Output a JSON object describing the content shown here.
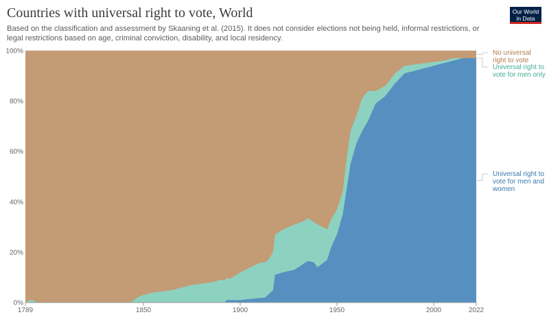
{
  "title": "Countries with universal right to vote, World",
  "subtitle": "Based on the classification and assessment by Skaaning et al. (2015). It does not consider elections not being held, informal restrictions, or legal restrictions based on age, criminal conviction, disability, and local residency.",
  "logo": {
    "line1": "Our World",
    "line2": "in Data"
  },
  "colors": {
    "none": "#c39b74",
    "men": "#8dd1c0",
    "both": "#5690c1",
    "grid": "#dddddd",
    "text": "#666666"
  },
  "chart_data": {
    "type": "area",
    "stacked": true,
    "percent": true,
    "ylim": [
      0,
      100
    ],
    "xlim": [
      1789,
      2022
    ],
    "x_ticks": [
      "1789",
      "1850",
      "1900",
      "1950",
      "2000",
      "2022"
    ],
    "y_ticks": [
      "0%",
      "20%",
      "40%",
      "60%",
      "80%",
      "100%"
    ],
    "series": [
      {
        "name": "Universal right to vote for men and women",
        "key": "both",
        "x": [
          1789,
          1892,
          1893,
          1900,
          1906,
          1913,
          1915,
          1917,
          1918,
          1922,
          1928,
          1932,
          1935,
          1938,
          1940,
          1945,
          1947,
          1950,
          1953,
          1955,
          1957,
          1960,
          1963,
          1966,
          1970,
          1975,
          1980,
          1985,
          1990,
          1995,
          2000,
          2005,
          2010,
          2015,
          2022
        ],
        "values": [
          0,
          0,
          1,
          1,
          1.5,
          2,
          3.5,
          5,
          11,
          12,
          13,
          15,
          16.5,
          16,
          14,
          17,
          22,
          27,
          35,
          45,
          55,
          63,
          68,
          72,
          79,
          82,
          87,
          91,
          92,
          93,
          94,
          95,
          96,
          97,
          97
        ]
      },
      {
        "name": "Universal right to vote for men only",
        "key": "men",
        "x": [
          1789,
          1791,
          1793,
          1795,
          1843,
          1846,
          1848,
          1850,
          1855,
          1860,
          1865,
          1870,
          1875,
          1880,
          1885,
          1890,
          1895,
          1900,
          1905,
          1910,
          1913,
          1915,
          1917,
          1918,
          1922,
          1928,
          1932,
          1935,
          1938,
          1940,
          1945,
          1947,
          1950,
          1953,
          1955,
          1957,
          1960,
          1963,
          1966,
          1970,
          1975,
          1980,
          1985,
          1990,
          1995,
          2000,
          2005,
          2010,
          2015,
          2022
        ],
        "values": [
          0,
          1,
          1,
          0,
          0,
          1.5,
          2.5,
          3,
          4,
          4.5,
          5,
          6,
          7,
          7.5,
          8,
          9,
          8.5,
          11,
          12.5,
          14,
          14,
          14,
          15,
          16,
          17,
          18,
          17,
          17,
          16,
          17,
          12,
          11,
          10,
          9,
          12,
          13,
          11,
          13,
          12,
          5,
          4,
          4,
          3,
          2.5,
          2,
          1.5,
          1,
          1,
          0,
          0
        ]
      },
      {
        "name": "No universal right to vote",
        "key": "none",
        "fill_to": 100
      }
    ]
  }
}
